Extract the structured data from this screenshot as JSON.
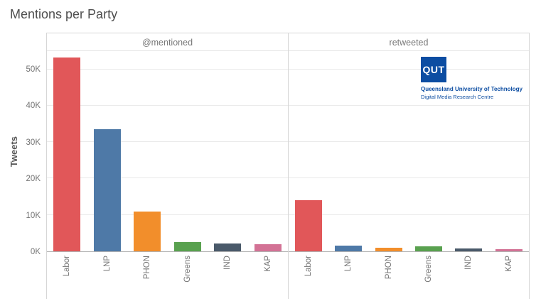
{
  "page": {
    "title": "Mentions per Party"
  },
  "logo": {
    "acronym": "QUT",
    "line1": "Queensland University of Technology",
    "line2": "Digital Media Research Centre",
    "brand_color": "#0c4da2"
  },
  "chart_data": {
    "type": "bar",
    "title": "Mentions per Party",
    "xlabel": "",
    "ylabel": "Tweets",
    "ylim": [
      0,
      55000
    ],
    "yticks": [
      0,
      10000,
      20000,
      30000,
      40000,
      50000
    ],
    "ytick_labels": [
      "0K",
      "10K",
      "20K",
      "30K",
      "40K",
      "50K"
    ],
    "categories": [
      "Labor",
      "LNP",
      "PHON",
      "Greens",
      "IND",
      "KAP"
    ],
    "bar_colors": [
      "#e15759",
      "#4e79a7",
      "#f28e2b",
      "#59a14f",
      "#4a5a6a",
      "#d37295"
    ],
    "grid": true,
    "legend": false,
    "panels": [
      {
        "label": "@mentioned",
        "values": [
          53000,
          33500,
          10800,
          2500,
          2200,
          2000
        ]
      },
      {
        "label": "retweeted",
        "values": [
          14000,
          1600,
          1000,
          1400,
          800,
          500
        ]
      }
    ]
  }
}
